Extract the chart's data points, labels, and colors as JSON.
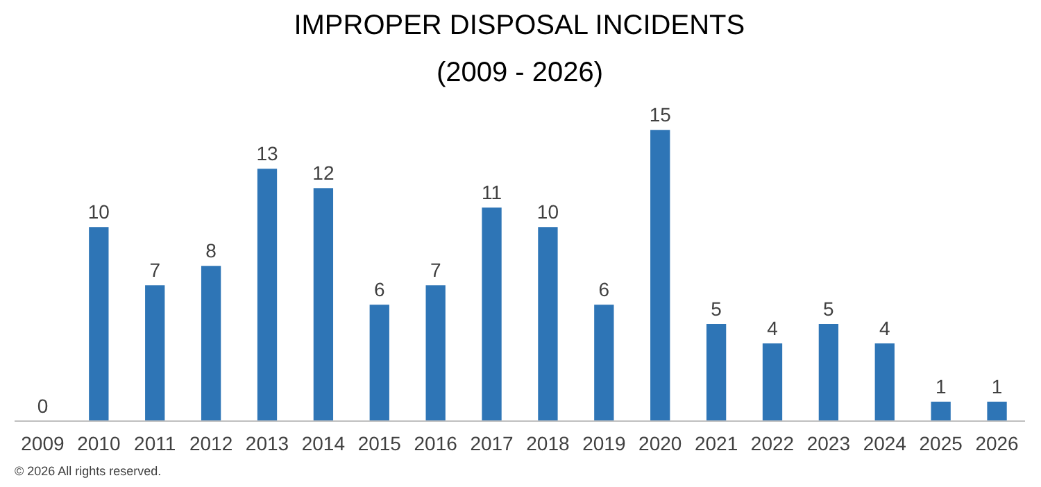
{
  "chart_data": {
    "type": "bar",
    "title": "IMPROPER DISPOSAL INCIDENTS",
    "subtitle": "(2009 - 2026)",
    "categories": [
      "2009",
      "2010",
      "2011",
      "2012",
      "2013",
      "2014",
      "2015",
      "2016",
      "2017",
      "2018",
      "2019",
      "2020",
      "2021",
      "2022",
      "2023",
      "2024",
      "2025",
      "2026"
    ],
    "values": [
      0,
      10,
      7,
      8,
      13,
      12,
      6,
      7,
      11,
      10,
      6,
      15,
      5,
      4,
      5,
      4,
      1,
      1
    ],
    "color": "#2e75b6",
    "data_labels": true,
    "grid": false,
    "annotations": [
      "© 2026 All rights reserved."
    ]
  }
}
